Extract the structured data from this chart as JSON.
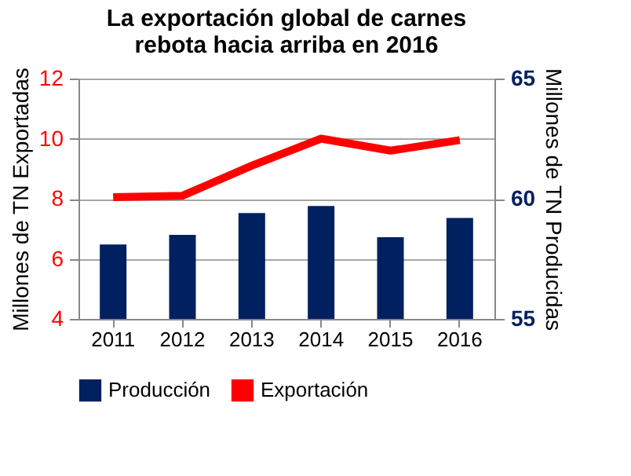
{
  "chart_data": {
    "type": "bar",
    "title": [
      "La exportación global de carnes",
      "rebota hacia arriba en 2016"
    ],
    "categories": [
      "2011",
      "2012",
      "2013",
      "2014",
      "2015",
      "2016"
    ],
    "series": [
      {
        "name": "Producción",
        "axis": "y2",
        "color": "#002060",
        "values": [
          58.1,
          58.5,
          59.4,
          59.7,
          58.4,
          59.2
        ]
      },
      {
        "name": "Exportación",
        "type": "line",
        "color": "#ff0000",
        "values": [
          8.05,
          8.1,
          9.1,
          10.0,
          9.6,
          9.95
        ]
      }
    ],
    "ylabel": "Millones de TN Exportadas",
    "y2label": "Millones de TN Producidas",
    "ylim": [
      4,
      12
    ],
    "yticks": [
      4,
      6,
      8,
      10,
      12
    ],
    "y2lim": [
      55,
      65
    ],
    "y2ticks": [
      55,
      60,
      65
    ],
    "grid": "y",
    "legend": "bottom"
  }
}
